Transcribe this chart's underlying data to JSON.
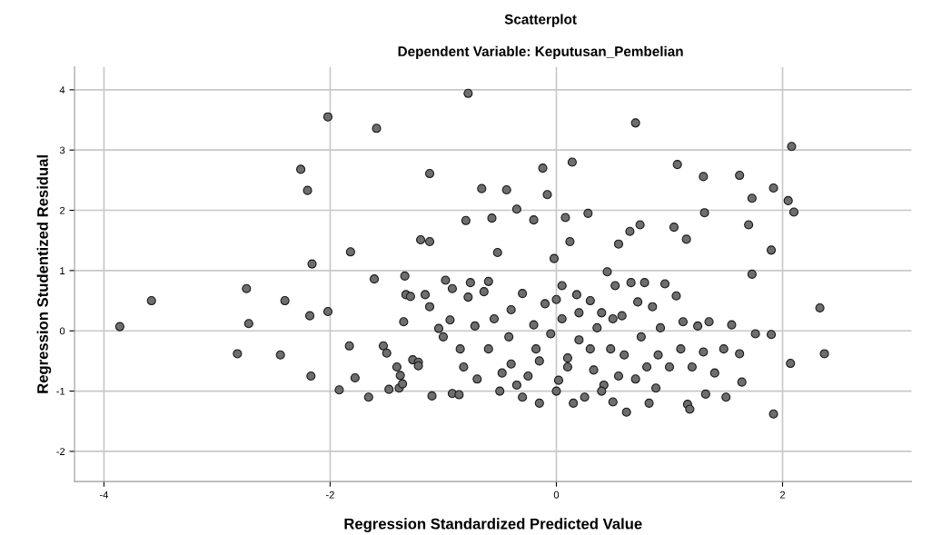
{
  "chart_data": {
    "type": "scatter",
    "title": "Scatterplot",
    "subtitle": "Dependent Variable: Keputusan_Pembelian",
    "xlabel": "Regression Standardized Predicted Value",
    "ylabel": "Regression Studentized Residual",
    "xlim": [
      -4.26,
      3.14
    ],
    "ylim": [
      -2.5,
      4.38
    ],
    "xticks": [
      -4,
      -2,
      0,
      2
    ],
    "yticks": [
      -2,
      -1,
      0,
      1,
      2,
      3,
      4
    ],
    "grid": true,
    "marker": "circle",
    "series": [
      {
        "color": "#6e6e6e",
        "x": [
          -3.86,
          -3.58,
          -2.82,
          -2.74,
          -2.72,
          -2.44,
          -2.4,
          -2.26,
          -2.2,
          -2.17,
          -2.16,
          -2.18,
          -2.02,
          -2.02,
          -1.92,
          -1.82,
          -1.83,
          -1.78,
          -1.66,
          -1.59,
          -1.61,
          -1.53,
          -1.5,
          -1.48,
          -1.41,
          -1.38,
          -1.39,
          -1.36,
          -1.35,
          -1.34,
          -1.33,
          -1.29,
          -1.27,
          -1.22,
          -1.22,
          -1.2,
          -1.16,
          -1.12,
          -1.12,
          -1.12,
          -1.1,
          -1.04,
          -0.98,
          -0.94,
          -0.92,
          -0.92,
          -0.86,
          -0.82,
          -0.78,
          -0.78,
          -0.8,
          -0.76,
          -0.72,
          -0.66,
          -0.64,
          -0.6,
          -0.57,
          -0.55,
          -0.52,
          -0.48,
          -0.44,
          -0.42,
          -0.4,
          -0.35,
          -0.35,
          -0.3,
          -0.25,
          -0.2,
          -0.18,
          -0.15,
          -0.12,
          -0.1,
          -0.08,
          -0.05,
          -0.02,
          0.0,
          0.02,
          0.05,
          0.08,
          0.1,
          0.12,
          0.14,
          0.18,
          0.2,
          0.25,
          0.28,
          0.3,
          0.33,
          0.36,
          0.4,
          0.42,
          0.45,
          0.48,
          0.5,
          0.52,
          0.55,
          0.58,
          0.6,
          0.62,
          0.65,
          0.66,
          0.7,
          0.72,
          0.74,
          0.75,
          0.78,
          0.8,
          0.82,
          0.85,
          0.88,
          0.92,
          0.96,
          1.0,
          1.04,
          1.06,
          1.07,
          1.1,
          1.12,
          1.15,
          1.16,
          1.18,
          1.2,
          1.25,
          1.3,
          1.3,
          1.31,
          1.32,
          1.35,
          1.4,
          1.48,
          1.5,
          1.55,
          1.62,
          1.62,
          1.64,
          1.7,
          1.73,
          1.73,
          1.76,
          1.9,
          1.9,
          1.92,
          1.92,
          2.05,
          2.08,
          2.1,
          2.07,
          2.33,
          2.37,
          -0.6,
          -0.5,
          -0.3,
          -0.2,
          0.0,
          0.1,
          0.2,
          0.3,
          0.4,
          0.5,
          -0.7,
          -0.85,
          -1.0,
          0.15,
          0.7,
          0.9,
          -0.4,
          -0.15,
          0.05,
          0.55
        ],
        "values": [
          0.07,
          0.5,
          -0.38,
          0.7,
          0.12,
          -0.4,
          0.5,
          2.68,
          2.33,
          -0.75,
          1.11,
          0.25,
          3.55,
          0.32,
          -0.98,
          1.31,
          -0.25,
          -0.78,
          -1.1,
          3.36,
          0.86,
          -0.25,
          -0.37,
          -0.97,
          -0.6,
          -0.74,
          -0.95,
          -0.88,
          0.15,
          0.91,
          0.6,
          0.57,
          -0.48,
          -0.52,
          -0.58,
          1.51,
          0.6,
          2.61,
          1.48,
          0.4,
          -1.08,
          0.04,
          0.84,
          0.18,
          0.7,
          -1.04,
          -1.06,
          -0.6,
          0.56,
          3.94,
          1.83,
          0.8,
          0.08,
          2.36,
          0.65,
          0.82,
          1.87,
          0.2,
          1.3,
          -0.7,
          2.34,
          -0.1,
          -0.55,
          2.02,
          -0.9,
          0.62,
          -0.75,
          1.84,
          -0.3,
          -1.2,
          2.7,
          0.45,
          2.26,
          -0.05,
          1.2,
          0.52,
          -0.82,
          0.2,
          1.88,
          -0.45,
          1.48,
          2.8,
          0.6,
          -0.15,
          -1.1,
          1.95,
          0.5,
          -0.65,
          0.05,
          0.3,
          -0.9,
          0.98,
          -0.3,
          -1.18,
          0.75,
          1.44,
          0.25,
          -0.4,
          -1.35,
          1.65,
          0.8,
          3.45,
          0.48,
          1.76,
          -0.1,
          0.8,
          -0.6,
          -1.2,
          0.4,
          -0.95,
          0.05,
          0.78,
          -0.6,
          1.72,
          0.58,
          2.76,
          -0.3,
          0.15,
          1.52,
          -1.22,
          -1.3,
          -0.6,
          0.08,
          -0.35,
          2.56,
          1.96,
          -1.05,
          0.15,
          -0.7,
          -0.3,
          -1.1,
          0.1,
          2.58,
          -0.38,
          -0.85,
          1.76,
          2.2,
          0.94,
          -0.05,
          1.34,
          -0.06,
          -1.38,
          2.37,
          2.16,
          3.06,
          1.97,
          -0.54,
          0.38,
          -0.38,
          -0.3,
          -1.0,
          -1.1,
          0.1,
          -1.0,
          -0.6,
          0.3,
          -0.3,
          -1.0,
          0.2,
          -0.8,
          -0.3,
          -0.1,
          -1.2,
          -0.8,
          -0.4,
          0.35,
          -0.5,
          0.75,
          -0.75
        ]
      }
    ]
  }
}
